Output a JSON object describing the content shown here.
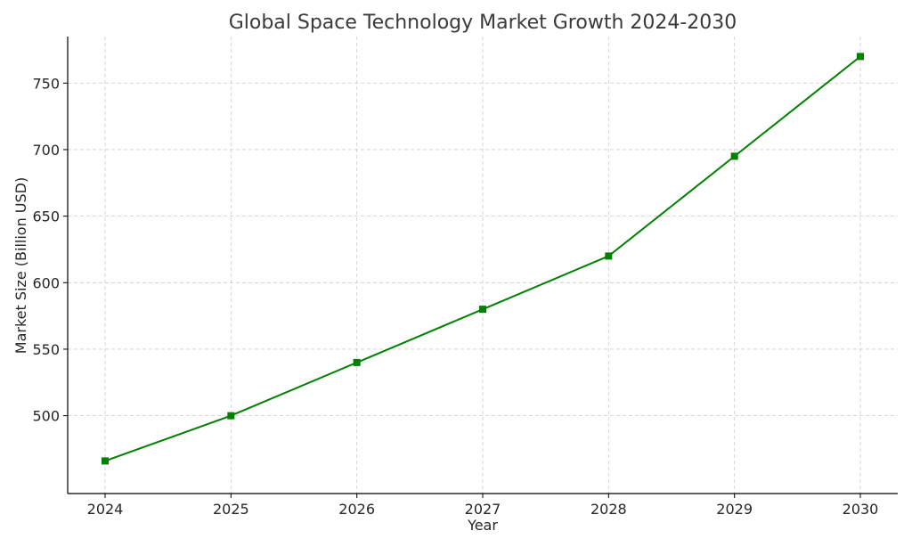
{
  "chart_data": {
    "type": "line",
    "title": "Global Space Technology Market Growth 2024-2030",
    "xlabel": "Year",
    "ylabel": "Market Size (Billion USD)",
    "x": [
      "2024",
      "2025",
      "2026",
      "2027",
      "2028",
      "2029",
      "2030"
    ],
    "series": [
      {
        "values": [
          466,
          500,
          540,
          580,
          620,
          695,
          770
        ],
        "color": "#008000",
        "marker": "square"
      }
    ],
    "yticks": [
      500,
      550,
      600,
      650,
      700,
      750
    ],
    "ylim": [
      441.5,
      785
    ],
    "grid": true,
    "legend": "none"
  }
}
